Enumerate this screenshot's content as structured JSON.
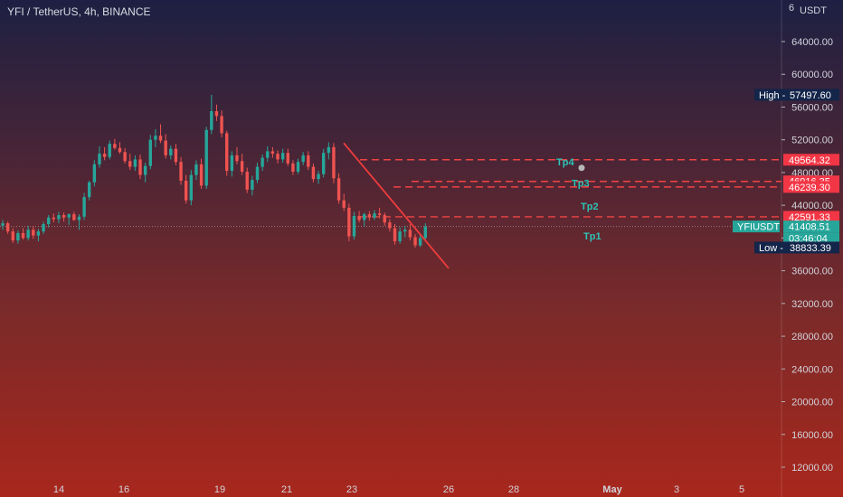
{
  "header": {
    "title": "YFI / TetherUS, 4h, BINANCE",
    "axis_first_label": "6",
    "currency": "USDT"
  },
  "chart_data": {
    "type": "candlestick",
    "y_ticks": [
      "64000.00",
      "60000.00",
      "56000.00",
      "52000.00",
      "48000.00",
      "44000.00",
      "40000.00",
      "36000.00",
      "32000.00",
      "28000.00",
      "24000.00",
      "20000.00",
      "16000.00",
      "12000.00"
    ],
    "y_tick_values": [
      64000,
      60000,
      56000,
      52000,
      48000,
      44000,
      40000,
      36000,
      32000,
      28000,
      24000,
      20000,
      16000,
      12000
    ],
    "x_ticks": [
      {
        "label": "14",
        "bold": false
      },
      {
        "label": "16",
        "bold": false
      },
      {
        "label": "19",
        "bold": false
      },
      {
        "label": "21",
        "bold": false
      },
      {
        "label": "23",
        "bold": false
      },
      {
        "label": "26",
        "bold": false
      },
      {
        "label": "28",
        "bold": false
      },
      {
        "label": "May",
        "bold": true
      },
      {
        "label": "3",
        "bold": false
      },
      {
        "label": "5",
        "bold": false
      }
    ],
    "price_labels": [
      {
        "tag": "High",
        "value": "57497.60",
        "kind": "high"
      },
      {
        "tag": "",
        "value": "49564.32",
        "kind": "red"
      },
      {
        "tag": "",
        "value": "46916.35",
        "kind": "red"
      },
      {
        "tag": "",
        "value": "46239.30",
        "kind": "red"
      },
      {
        "tag": "",
        "value": "42591.33",
        "kind": "red"
      },
      {
        "tag": "YFIUSDT",
        "value": "41408.51",
        "kind": "current"
      },
      {
        "tag": "",
        "value": "03:46:04",
        "kind": "timer"
      },
      {
        "tag": "Low",
        "value": "38833.39",
        "kind": "low"
      }
    ],
    "levels": [
      {
        "name": "Tp4",
        "value": 49564.32
      },
      {
        "name": "Tp3",
        "value": 46916.35
      },
      {
        "name": "Tp2",
        "value": 46239.3
      },
      {
        "name": "Tp1",
        "value": 42591.33
      }
    ],
    "last_price": 41408.51,
    "trendline": {
      "from_price": 51600,
      "to_price": 36300
    },
    "candles": [
      [
        41500,
        42200,
        41000,
        41800
      ],
      [
        41800,
        42000,
        40500,
        40800
      ],
      [
        40800,
        41200,
        39400,
        39700
      ],
      [
        39700,
        40900,
        39300,
        40600
      ],
      [
        40600,
        41200,
        39800,
        40000
      ],
      [
        40000,
        41500,
        39700,
        41000
      ],
      [
        41000,
        41400,
        39900,
        40300
      ],
      [
        40300,
        41100,
        39600,
        40800
      ],
      [
        40800,
        42000,
        40500,
        41700
      ],
      [
        41700,
        42800,
        41300,
        42500
      ],
      [
        42500,
        43000,
        41900,
        42300
      ],
      [
        42300,
        43200,
        41800,
        42800
      ],
      [
        42800,
        43100,
        42000,
        42500
      ],
      [
        42500,
        43000,
        41600,
        42900
      ],
      [
        42900,
        43200,
        42100,
        42200
      ],
      [
        42200,
        42900,
        41000,
        42600
      ],
      [
        42600,
        45500,
        42200,
        45000
      ],
      [
        45000,
        47000,
        44600,
        46800
      ],
      [
        46800,
        49500,
        46300,
        49000
      ],
      [
        49000,
        51200,
        48600,
        50300
      ],
      [
        50300,
        51100,
        49500,
        49900
      ],
      [
        49900,
        51900,
        49600,
        51500
      ],
      [
        51500,
        52100,
        50800,
        51000
      ],
      [
        51000,
        51700,
        50300,
        50500
      ],
      [
        50500,
        51000,
        49100,
        49400
      ],
      [
        49400,
        50300,
        48300,
        48700
      ],
      [
        48700,
        50100,
        48200,
        49600
      ],
      [
        49600,
        50200,
        47200,
        47700
      ],
      [
        47700,
        49200,
        46800,
        48800
      ],
      [
        48800,
        52600,
        48400,
        52000
      ],
      [
        52000,
        53300,
        51100,
        52500
      ],
      [
        52500,
        53900,
        51600,
        51900
      ],
      [
        51900,
        52700,
        49700,
        50100
      ],
      [
        50100,
        51300,
        49600,
        50900
      ],
      [
        50900,
        51500,
        48900,
        49300
      ],
      [
        49300,
        49900,
        46500,
        47000
      ],
      [
        47000,
        47700,
        44200,
        44600
      ],
      [
        44600,
        48300,
        44000,
        47700
      ],
      [
        47700,
        49500,
        47100,
        49000
      ],
      [
        49000,
        49700,
        46000,
        46400
      ],
      [
        46400,
        53600,
        46000,
        53200
      ],
      [
        53200,
        57500,
        52700,
        55500
      ],
      [
        55500,
        56300,
        54300,
        54900
      ],
      [
        54900,
        55600,
        52300,
        52800
      ],
      [
        52800,
        53100,
        47600,
        48200
      ],
      [
        48200,
        50600,
        47500,
        50100
      ],
      [
        50100,
        51100,
        49000,
        49400
      ],
      [
        49400,
        50300,
        47700,
        48100
      ],
      [
        48100,
        48600,
        45500,
        45900
      ],
      [
        45900,
        47600,
        45200,
        47100
      ],
      [
        47100,
        49200,
        46700,
        48700
      ],
      [
        48700,
        50200,
        48200,
        49800
      ],
      [
        49800,
        51200,
        49300,
        50600
      ],
      [
        50600,
        51100,
        49800,
        50300
      ],
      [
        50300,
        50700,
        49100,
        49600
      ],
      [
        49600,
        50900,
        49200,
        50400
      ],
      [
        50400,
        50900,
        48800,
        49100
      ],
      [
        49100,
        49500,
        47700,
        48100
      ],
      [
        48100,
        49700,
        47800,
        49300
      ],
      [
        49300,
        50500,
        48900,
        50100
      ],
      [
        50100,
        50600,
        48300,
        48700
      ],
      [
        48700,
        49100,
        46800,
        47200
      ],
      [
        47200,
        48200,
        46600,
        47800
      ],
      [
        47800,
        50900,
        47400,
        50400
      ],
      [
        50400,
        51700,
        49600,
        51100
      ],
      [
        51100,
        51600,
        46700,
        47300
      ],
      [
        47300,
        47900,
        44200,
        44600
      ],
      [
        44600,
        45400,
        43300,
        43700
      ],
      [
        43700,
        44200,
        39600,
        40200
      ],
      [
        40200,
        43200,
        39800,
        42700
      ],
      [
        42700,
        43300,
        41900,
        42200
      ],
      [
        42200,
        43100,
        41400,
        42900
      ],
      [
        42900,
        43300,
        42100,
        42500
      ],
      [
        42500,
        43400,
        42200,
        43000
      ],
      [
        43000,
        43700,
        42400,
        42800
      ],
      [
        42800,
        43100,
        41500,
        41900
      ],
      [
        41900,
        42300,
        40800,
        41200
      ],
      [
        41200,
        41700,
        39200,
        39600
      ],
      [
        39600,
        41300,
        39300,
        40800
      ],
      [
        40800,
        41500,
        40100,
        41000
      ],
      [
        41000,
        41700,
        39700,
        40100
      ],
      [
        40100,
        40500,
        38830,
        39100
      ],
      [
        39100,
        40400,
        38900,
        40000
      ],
      [
        40000,
        41800,
        39800,
        41400
      ]
    ]
  }
}
